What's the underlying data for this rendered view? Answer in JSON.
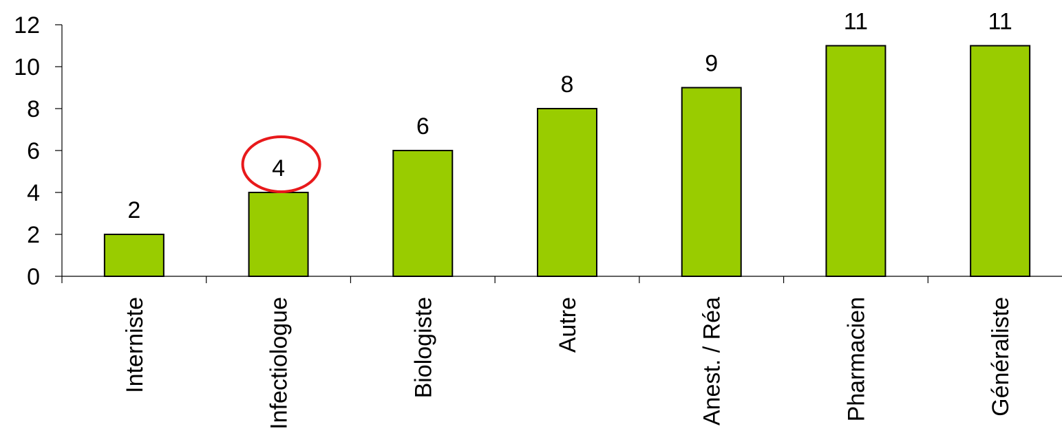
{
  "chart_data": {
    "type": "bar",
    "title": "",
    "xlabel": "",
    "ylabel": "",
    "categories": [
      "Interniste",
      "Infectiologue",
      "Biologiste",
      "Autre",
      "Anest. / Réa",
      "Pharmacien",
      "Généraliste"
    ],
    "values": [
      2,
      4,
      6,
      8,
      9,
      11,
      11
    ],
    "data_labels": [
      "2",
      "4",
      "6",
      "8",
      "9",
      "11",
      "11"
    ],
    "ylim": [
      0,
      12
    ],
    "yticks": [
      0,
      2,
      4,
      6,
      8,
      10,
      12
    ],
    "ytick_labels": [
      "0",
      "2",
      "4",
      "6",
      "8",
      "10",
      "12"
    ],
    "grid": false,
    "legend": "none",
    "bar_color": "#99cc00",
    "bar_edge_color": "#000000",
    "highlighted_category": "Infectiologue",
    "highlight_color": "#e8191b",
    "highlight_shape": "ellipse"
  }
}
